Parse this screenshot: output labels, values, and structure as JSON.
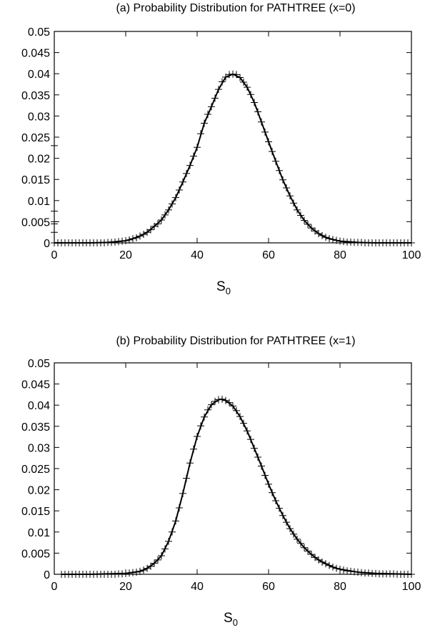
{
  "chart_data": [
    {
      "type": "line",
      "title": "(a) Probability Distribution for PATHTREE (x=0)",
      "xlabel": "S",
      "xlabel_sub": "0",
      "ylabel": "",
      "xlim": [
        0,
        100
      ],
      "ylim": [
        0,
        0.05
      ],
      "x_ticks": [
        "0",
        "20",
        "40",
        "60",
        "80",
        "100"
      ],
      "y_ticks": [
        "0",
        "0.005",
        "0.01",
        "0.015",
        "0.02",
        "0.025",
        "0.03",
        "0.035",
        "0.04",
        "0.045",
        "0.05"
      ],
      "grid": false,
      "legend": "none",
      "series": [
        {
          "style": "solid-line",
          "x": [
            0,
            5,
            10,
            15,
            20,
            22,
            24,
            26,
            28,
            30,
            32,
            34,
            36,
            38,
            40,
            42,
            44,
            46,
            48,
            50,
            52,
            54,
            56,
            58,
            60,
            62,
            64,
            66,
            68,
            70,
            72,
            74,
            76,
            78,
            80,
            85,
            90,
            95,
            100
          ],
          "y": [
            0.0,
            0.0,
            0.0,
            0.0001,
            0.0005,
            0.001,
            0.0016,
            0.0025,
            0.0039,
            0.0054,
            0.0078,
            0.0107,
            0.0144,
            0.0183,
            0.0226,
            0.0283,
            0.0322,
            0.0363,
            0.0392,
            0.0399,
            0.0391,
            0.0368,
            0.0332,
            0.0286,
            0.0239,
            0.0193,
            0.0149,
            0.0111,
            0.0078,
            0.0053,
            0.0035,
            0.0022,
            0.0013,
            0.0008,
            0.0004,
            0.0001,
            0.0,
            0.0,
            0.0
          ]
        },
        {
          "style": "plus-markers",
          "x": [
            0,
            0,
            0,
            0,
            0,
            0,
            1,
            2,
            3,
            4,
            5,
            6,
            7,
            8,
            9,
            10,
            11,
            12,
            13,
            14,
            15,
            16,
            17,
            18,
            19,
            20,
            21,
            22,
            23,
            24,
            25,
            26,
            27,
            28,
            29,
            30,
            31,
            32,
            33,
            34,
            35,
            36,
            37,
            38,
            39,
            40,
            41,
            42,
            43,
            44,
            45,
            46,
            47,
            48,
            49,
            50,
            51,
            52,
            53,
            54,
            55,
            56,
            57,
            58,
            59,
            60,
            61,
            62,
            63,
            64,
            65,
            66,
            67,
            68,
            69,
            70,
            71,
            72,
            73,
            74,
            75,
            76,
            77,
            78,
            79,
            80,
            81,
            82,
            83,
            84,
            85,
            86,
            87,
            88,
            89,
            90,
            91,
            92,
            93,
            94,
            95,
            96,
            97,
            98,
            99,
            100
          ],
          "y": [
            0.023,
            0.0075,
            0.005,
            0.0045,
            0.0025,
            0.0,
            0.0,
            0.0,
            0.0,
            0.0,
            0.0,
            0.0,
            0.0,
            0.0,
            0.0,
            0.0,
            0.0,
            0.0,
            0.0,
            0.0,
            0.0001,
            0.0001,
            0.0002,
            0.0003,
            0.0004,
            0.0005,
            0.0007,
            0.001,
            0.0012,
            0.0016,
            0.002,
            0.0025,
            0.0031,
            0.0039,
            0.0045,
            0.0054,
            0.0066,
            0.0078,
            0.0092,
            0.0107,
            0.0125,
            0.0144,
            0.0164,
            0.0183,
            0.0205,
            0.0226,
            0.0258,
            0.0283,
            0.0304,
            0.0322,
            0.0342,
            0.0363,
            0.0381,
            0.0392,
            0.0398,
            0.0399,
            0.0398,
            0.0391,
            0.038,
            0.0368,
            0.0351,
            0.0332,
            0.031,
            0.0286,
            0.0262,
            0.0239,
            0.0216,
            0.0193,
            0.0171,
            0.0149,
            0.013,
            0.0111,
            0.0094,
            0.0078,
            0.0065,
            0.0053,
            0.0044,
            0.0035,
            0.0028,
            0.0022,
            0.0017,
            0.0013,
            0.001,
            0.0008,
            0.0006,
            0.0004,
            0.0003,
            0.0002,
            0.0002,
            0.0001,
            0.0001,
            0.0001,
            0.0,
            0.0,
            0.0,
            0.0,
            0.0,
            0.0,
            0.0,
            0.0,
            0.0,
            0.0,
            0.0,
            0.0,
            0.0,
            0.0
          ]
        }
      ]
    },
    {
      "type": "line",
      "title": "(b) Probability Distribution for PATHTREE (x=1)",
      "xlabel": "S",
      "xlabel_sub": "0",
      "ylabel": "",
      "xlim": [
        0,
        100
      ],
      "ylim": [
        0,
        0.05
      ],
      "x_ticks": [
        "0",
        "20",
        "40",
        "60",
        "80",
        "100"
      ],
      "y_ticks": [
        "0",
        "0.005",
        "0.01",
        "0.015",
        "0.02",
        "0.025",
        "0.03",
        "0.035",
        "0.04",
        "0.045",
        "0.05"
      ],
      "grid": false,
      "legend": "none",
      "series": [
        {
          "style": "solid-line",
          "x": [
            2,
            10,
            20,
            24,
            26,
            28,
            30,
            32,
            34,
            36,
            38,
            40,
            42,
            44,
            46,
            47,
            48,
            50,
            52,
            54,
            56,
            58,
            60,
            62,
            64,
            66,
            68,
            70,
            72,
            74,
            76,
            78,
            80,
            85,
            90,
            95,
            100
          ],
          "y": [
            0.0,
            0.0,
            0.0002,
            0.0007,
            0.0014,
            0.0026,
            0.0044,
            0.0078,
            0.0126,
            0.0191,
            0.0263,
            0.0326,
            0.0372,
            0.0401,
            0.0413,
            0.0414,
            0.0411,
            0.0398,
            0.0373,
            0.0339,
            0.0298,
            0.0256,
            0.0213,
            0.0174,
            0.0139,
            0.0108,
            0.0083,
            0.0063,
            0.0047,
            0.0034,
            0.0025,
            0.0017,
            0.0012,
            0.0005,
            0.0002,
            0.0001,
            0.0
          ]
        },
        {
          "style": "plus-markers",
          "x": [
            2,
            3,
            4,
            5,
            6,
            7,
            8,
            9,
            10,
            11,
            12,
            13,
            14,
            15,
            16,
            17,
            18,
            19,
            20,
            21,
            22,
            23,
            24,
            25,
            26,
            27,
            28,
            29,
            30,
            31,
            32,
            33,
            34,
            35,
            36,
            37,
            38,
            39,
            40,
            41,
            42,
            43,
            44,
            45,
            46,
            47,
            48,
            49,
            50,
            51,
            52,
            53,
            54,
            55,
            56,
            57,
            58,
            59,
            60,
            61,
            62,
            63,
            64,
            65,
            66,
            67,
            68,
            69,
            70,
            71,
            72,
            73,
            74,
            75,
            76,
            77,
            78,
            79,
            80,
            81,
            82,
            83,
            84,
            85,
            86,
            87,
            88,
            89,
            90,
            91,
            92,
            93,
            94,
            95,
            96,
            97,
            98,
            99,
            100
          ],
          "y": [
            0.0,
            0.0,
            0.0,
            0.0,
            0.0,
            0.0,
            0.0,
            0.0,
            0.0,
            0.0,
            0.0,
            0.0,
            0.0,
            0.0,
            0.0,
            0.0,
            0.0001,
            0.0001,
            0.0002,
            0.0003,
            0.0004,
            0.0005,
            0.0007,
            0.001,
            0.0014,
            0.0019,
            0.0026,
            0.0034,
            0.0044,
            0.006,
            0.0078,
            0.01,
            0.0126,
            0.0157,
            0.0191,
            0.0227,
            0.0263,
            0.0296,
            0.0326,
            0.0351,
            0.0372,
            0.0389,
            0.0401,
            0.0409,
            0.0413,
            0.0414,
            0.0411,
            0.0406,
            0.0398,
            0.0387,
            0.0373,
            0.0357,
            0.0339,
            0.0319,
            0.0298,
            0.0277,
            0.0256,
            0.0234,
            0.0213,
            0.0193,
            0.0174,
            0.0156,
            0.0139,
            0.0123,
            0.0108,
            0.0095,
            0.0083,
            0.0073,
            0.0063,
            0.0055,
            0.0047,
            0.004,
            0.0034,
            0.0029,
            0.0025,
            0.0021,
            0.0017,
            0.0014,
            0.0012,
            0.001,
            0.0008,
            0.0007,
            0.0006,
            0.0005,
            0.0004,
            0.0003,
            0.0003,
            0.0002,
            0.0002,
            0.0001,
            0.0001,
            0.0001,
            0.0001,
            0.0001,
            0.0,
            0.0,
            0.0,
            0.0,
            0.0
          ]
        }
      ]
    }
  ]
}
